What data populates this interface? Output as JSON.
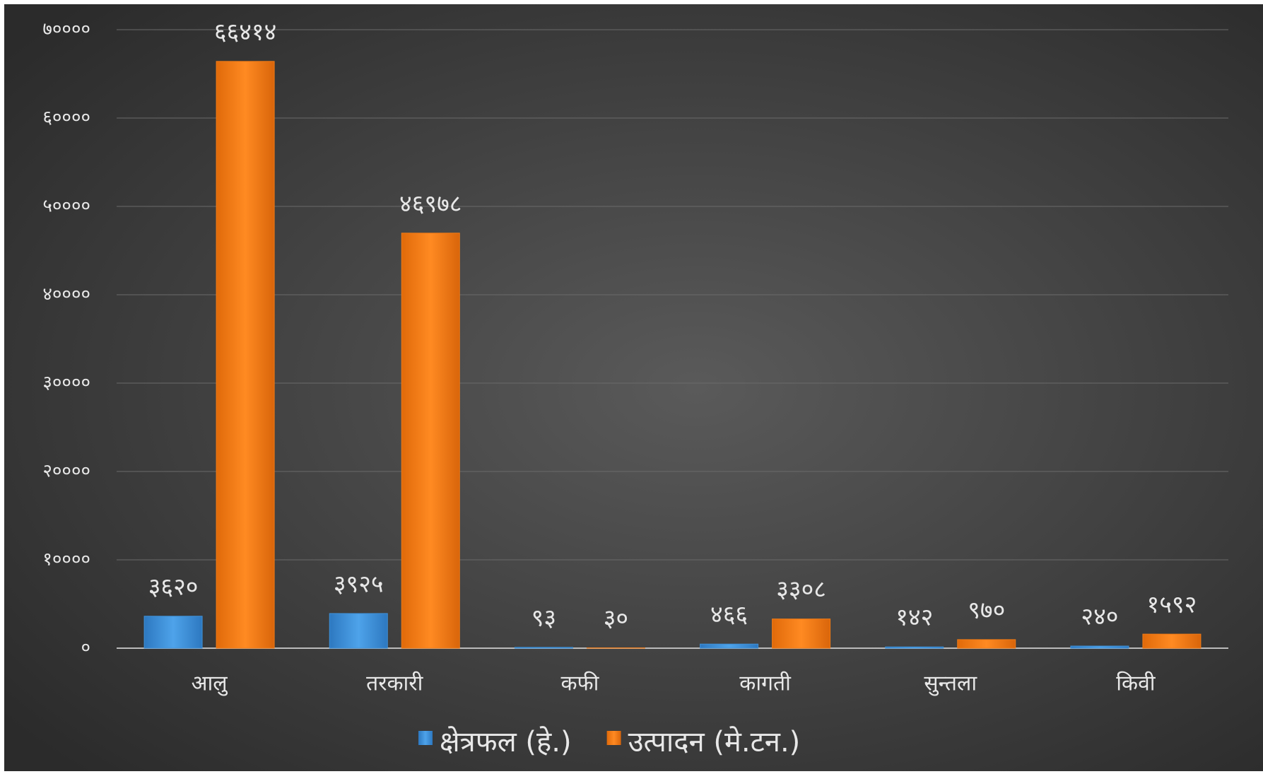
{
  "chart_data": {
    "type": "bar",
    "categories": [
      "आलु",
      "तरकारी",
      "कफी",
      "कागती",
      "सुन्तला",
      "किवी"
    ],
    "series": [
      {
        "name": "क्षेत्रफल (हे.)",
        "color": "#3f91d8",
        "values": [
          3620,
          3925,
          93,
          466,
          142,
          240
        ],
        "value_labels": [
          "३६२०",
          "३९२५",
          "९३",
          "४६६",
          "१४२",
          "२४०"
        ]
      },
      {
        "name": "उत्पादन (मे.टन.)",
        "color": "#f07b16",
        "values": [
          66414,
          46978,
          30,
          3308,
          970,
          1592
        ],
        "value_labels": [
          "६६४१४",
          "४६९७८",
          "३०",
          "३३०८",
          "९७०",
          "१५९२"
        ]
      }
    ],
    "ylim": [
      0,
      70000
    ],
    "yticks": [
      {
        "value": 0,
        "label": "०"
      },
      {
        "value": 10000,
        "label": "१००००"
      },
      {
        "value": 20000,
        "label": "२००००"
      },
      {
        "value": 30000,
        "label": "३००००"
      },
      {
        "value": 40000,
        "label": "४००००"
      },
      {
        "value": 50000,
        "label": "५००००"
      },
      {
        "value": 60000,
        "label": "६००००"
      },
      {
        "value": 70000,
        "label": "७००००"
      }
    ],
    "grid": true,
    "legend": "bottom"
  }
}
